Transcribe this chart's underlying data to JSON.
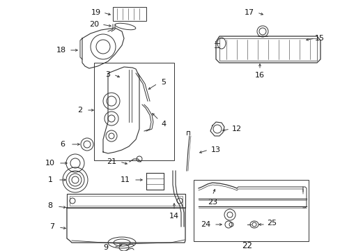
{
  "bg_color": "#ffffff",
  "fig_width": 4.89,
  "fig_height": 3.6,
  "dpi": 100,
  "label_color": "#111111",
  "line_color": "#333333"
}
